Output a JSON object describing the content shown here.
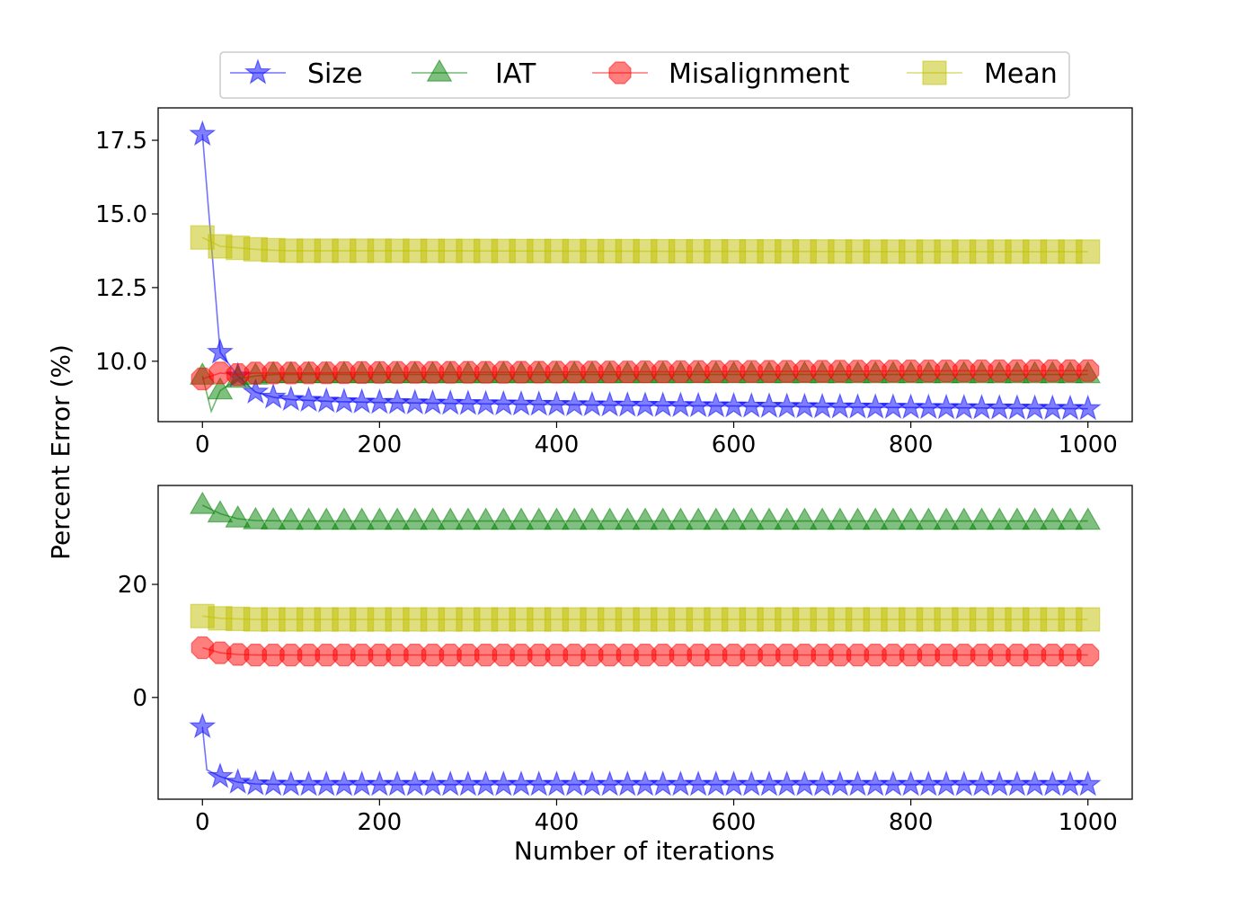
{
  "chart_data": [
    {
      "type": "line",
      "panel": "top",
      "xlabel": "",
      "ylabel": "Percent Error (%)",
      "xlim": [
        -50,
        1050
      ],
      "ylim": [
        7.95,
        18.6
      ],
      "xticks": [
        0,
        200,
        400,
        600,
        800,
        1000
      ],
      "xtick_labels": [
        "0",
        "200",
        "400",
        "600",
        "800",
        "1000"
      ],
      "yticks": [
        10.0,
        12.5,
        15.0,
        17.5
      ],
      "ytick_labels": [
        "10.0",
        "12.5",
        "15.0",
        "17.5"
      ],
      "grid": false,
      "marker_step": 20,
      "series": [
        {
          "name": "Size",
          "color": "#0000ff",
          "marker": "star",
          "x": [
            0,
            20,
            40,
            60,
            80,
            100,
            150,
            200,
            300,
            400,
            500,
            600,
            700,
            800,
            900,
            1000
          ],
          "y": [
            17.7,
            10.3,
            9.5,
            8.95,
            8.78,
            8.7,
            8.63,
            8.6,
            8.56,
            8.53,
            8.5,
            8.48,
            8.45,
            8.43,
            8.41,
            8.39
          ]
        },
        {
          "name": "IAT",
          "color": "#008000",
          "marker": "triangle",
          "x": [
            0,
            10,
            20,
            40,
            60,
            80,
            100,
            200,
            400,
            600,
            800,
            1000
          ],
          "y": [
            9.5,
            8.3,
            9.0,
            9.4,
            9.5,
            9.55,
            9.55,
            9.55,
            9.55,
            9.55,
            9.55,
            9.55
          ]
        },
        {
          "name": "Misalignment",
          "color": "#ff0000",
          "marker": "octagon",
          "x": [
            0,
            20,
            40,
            60,
            100,
            200,
            400,
            600,
            800,
            1000
          ],
          "y": [
            9.4,
            9.6,
            9.55,
            9.6,
            9.6,
            9.62,
            9.63,
            9.65,
            9.67,
            9.68
          ]
        },
        {
          "name": "Mean",
          "color": "#bfbf00",
          "marker": "square",
          "x": [
            0,
            20,
            40,
            60,
            80,
            100,
            200,
            400,
            600,
            800,
            1000
          ],
          "y": [
            14.2,
            13.9,
            13.85,
            13.8,
            13.77,
            13.75,
            13.75,
            13.74,
            13.73,
            13.72,
            13.72
          ]
        }
      ]
    },
    {
      "type": "line",
      "panel": "bottom",
      "xlabel": "Number of iterations",
      "ylabel": "",
      "xlim": [
        -50,
        1050
      ],
      "ylim": [
        -18,
        37.5
      ],
      "xticks": [
        0,
        200,
        400,
        600,
        800,
        1000
      ],
      "xtick_labels": [
        "0",
        "200",
        "400",
        "600",
        "800",
        "1000"
      ],
      "yticks": [
        0,
        20
      ],
      "ytick_labels": [
        "0",
        "20"
      ],
      "grid": false,
      "marker_step": 20,
      "series": [
        {
          "name": "Size",
          "color": "#0000ff",
          "marker": "star",
          "x": [
            0,
            5,
            20,
            40,
            60,
            100,
            200,
            400,
            600,
            800,
            1000
          ],
          "y": [
            -5.2,
            -12.8,
            -14,
            -15,
            -15.3,
            -15.4,
            -15.4,
            -15.4,
            -15.4,
            -15.4,
            -15.4
          ]
        },
        {
          "name": "IAT",
          "color": "#008000",
          "marker": "triangle",
          "x": [
            0,
            20,
            40,
            60,
            100,
            200,
            400,
            600,
            800,
            1000
          ],
          "y": [
            34,
            32.5,
            31.6,
            31.3,
            31.2,
            31.2,
            31.2,
            31.2,
            31.2,
            31.2
          ]
        },
        {
          "name": "Misalignment",
          "color": "#ff0000",
          "marker": "octagon",
          "x": [
            0,
            20,
            40,
            60,
            100,
            200,
            400,
            600,
            800,
            1000
          ],
          "y": [
            8.8,
            7.9,
            7.6,
            7.5,
            7.5,
            7.5,
            7.5,
            7.5,
            7.5,
            7.5
          ]
        },
        {
          "name": "Mean",
          "color": "#bfbf00",
          "marker": "square",
          "x": [
            0,
            20,
            40,
            60,
            100,
            200,
            400,
            600,
            800,
            1000
          ],
          "y": [
            14.4,
            14.0,
            13.9,
            13.8,
            13.8,
            13.8,
            13.8,
            13.8,
            13.8,
            13.8
          ]
        }
      ]
    }
  ],
  "legend": {
    "placement": "top-center",
    "entries": [
      {
        "label": "Size",
        "color": "#0000ff",
        "marker": "star"
      },
      {
        "label": "IAT",
        "color": "#008000",
        "marker": "triangle"
      },
      {
        "label": "Misalignment",
        "color": "#ff0000",
        "marker": "octagon"
      },
      {
        "label": "Mean",
        "color": "#bfbf00",
        "marker": "square"
      }
    ]
  }
}
